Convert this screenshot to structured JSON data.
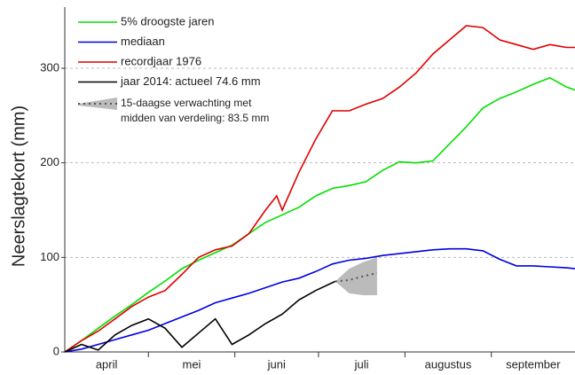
{
  "chart_data": {
    "type": "line",
    "y_label": "Neerslagtekort (mm)",
    "ylim": [
      0,
      360
    ],
    "yticks": [
      0,
      100,
      200,
      300
    ],
    "grid": true,
    "xlim": [
      0,
      183
    ],
    "xticks": [
      {
        "value": 15,
        "label": "april"
      },
      {
        "value": 45.5,
        "label": "mei"
      },
      {
        "value": 76,
        "label": "juni"
      },
      {
        "value": 106.5,
        "label": "juli"
      },
      {
        "value": 137.5,
        "label": "augustus"
      },
      {
        "value": 168,
        "label": "september"
      }
    ],
    "x_minor_ticks": [
      30,
      61,
      91,
      122,
      153
    ],
    "legend": "top-left",
    "series": [
      {
        "name": "5% droogste jaren",
        "color": "#00e000",
        "x": [
          0,
          6,
          12,
          18,
          24,
          30,
          36,
          42,
          48,
          54,
          60,
          66,
          72,
          78,
          84,
          90,
          96,
          102,
          108,
          114,
          120,
          126,
          132,
          138,
          144,
          150,
          156,
          162,
          168,
          174,
          180,
          183
        ],
        "values": [
          0,
          12,
          25,
          38,
          50,
          63,
          75,
          88,
          97,
          105,
          113,
          125,
          137,
          145,
          153,
          165,
          173,
          176,
          180,
          192,
          201,
          200,
          202,
          220,
          238,
          258,
          268,
          275,
          283,
          290,
          280,
          277
        ]
      },
      {
        "name": "mediaan",
        "color": "#0000e0",
        "x": [
          0,
          6,
          12,
          18,
          24,
          30,
          36,
          42,
          48,
          54,
          60,
          66,
          72,
          78,
          84,
          90,
          96,
          102,
          108,
          114,
          120,
          126,
          132,
          138,
          144,
          150,
          156,
          162,
          168,
          174,
          180,
          183
        ],
        "values": [
          0,
          3,
          8,
          13,
          18,
          23,
          30,
          37,
          44,
          52,
          57,
          62,
          68,
          74,
          78,
          85,
          93,
          97,
          99,
          102,
          104,
          106,
          108,
          109,
          109,
          107,
          98,
          91,
          91,
          90,
          89,
          88
        ]
      },
      {
        "name": "recordjaar 1976",
        "color": "#e00000",
        "x": [
          0,
          6,
          12,
          18,
          24,
          30,
          36,
          42,
          48,
          54,
          60,
          66,
          72,
          76,
          78,
          84,
          90,
          96,
          102,
          108,
          114,
          120,
          126,
          132,
          138,
          144,
          150,
          156,
          162,
          168,
          174,
          180,
          183
        ],
        "values": [
          0,
          12,
          22,
          35,
          48,
          58,
          65,
          82,
          100,
          108,
          112,
          125,
          150,
          165,
          150,
          190,
          225,
          255,
          255,
          262,
          268,
          280,
          295,
          315,
          330,
          345,
          343,
          330,
          325,
          320,
          325,
          322,
          322
        ]
      },
      {
        "name": "jaar 2014: actueel 74.6 mm",
        "color": "#000000",
        "x": [
          0,
          6,
          12,
          18,
          24,
          30,
          36,
          42,
          48,
          54,
          60,
          66,
          72,
          78,
          84,
          90,
          97
        ],
        "values": [
          0,
          8,
          2,
          18,
          28,
          35,
          25,
          5,
          20,
          35,
          8,
          18,
          30,
          40,
          55,
          65,
          74.6
        ]
      }
    ],
    "forecast": {
      "name": [
        "15-daagse verwachting met",
        "midden van verdeling: 83.5 mm"
      ],
      "color": "#555555",
      "band_color": "#bbbbbb",
      "x": [
        97,
        102,
        107,
        112
      ],
      "values": [
        74.6,
        76,
        80,
        83.5
      ],
      "lower": [
        74.6,
        62,
        60,
        60
      ],
      "upper": [
        74.6,
        88,
        95,
        100
      ]
    }
  }
}
